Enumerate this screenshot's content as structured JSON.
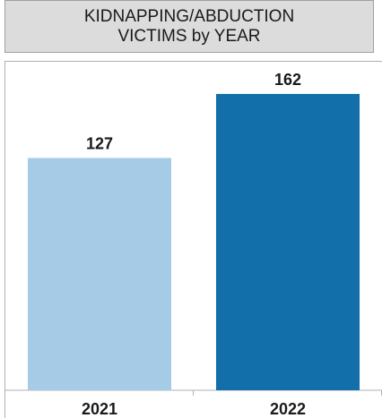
{
  "chart_data": {
    "type": "bar",
    "title": "KIDNAPPING/ABDUCTION\nVICTIMS by YEAR",
    "title_lines": [
      "KIDNAPPING/ABDUCTION",
      "VICTIMS by YEAR"
    ],
    "categories": [
      "2021",
      "2022"
    ],
    "values": [
      127,
      162
    ],
    "data_labels": [
      "127",
      "162"
    ],
    "colors": [
      "#a6cbe6",
      "#126fa9"
    ],
    "xlabel": "",
    "ylabel": "",
    "ylim": [
      0,
      184
    ],
    "grid": false,
    "legend": "none"
  }
}
